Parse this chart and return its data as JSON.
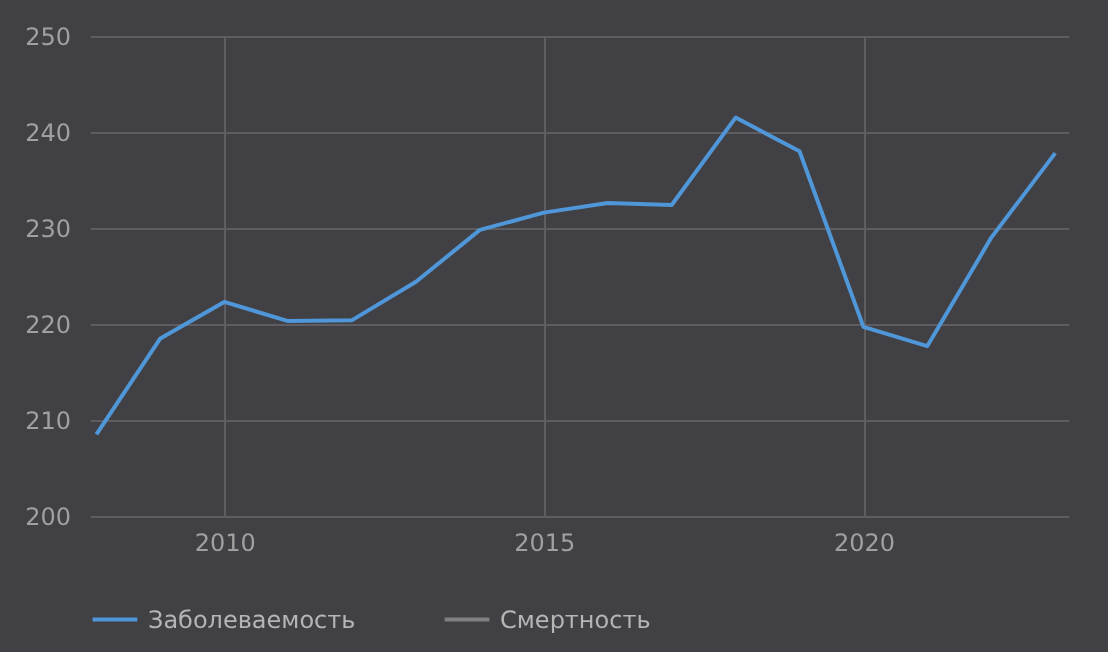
{
  "chart_data": {
    "type": "line",
    "x": [
      2008,
      2009,
      2010,
      2011,
      2012,
      2013,
      2014,
      2015,
      2016,
      2017,
      2018,
      2019,
      2020,
      2021,
      2022,
      2023
    ],
    "series": [
      {
        "name": "Заболеваемость",
        "color": "#4f97d8",
        "values": [
          208.5,
          218.5,
          222.3,
          220.3,
          220.4,
          224.4,
          229.8,
          231.6,
          232.6,
          232.4,
          241.5,
          238.0,
          219.7,
          217.7,
          229.0,
          237.8
        ]
      },
      {
        "name": "Смертность",
        "color": "#808080",
        "values": [
          null,
          null,
          null,
          null,
          null,
          null,
          null,
          null,
          null,
          null,
          null,
          null,
          null,
          null,
          null,
          null
        ]
      }
    ],
    "xlim": [
      2007.9,
      2023.2
    ],
    "xticks": [
      2010,
      2015,
      2020
    ],
    "ylim": [
      200,
      250
    ],
    "yticks": [
      200,
      210,
      220,
      230,
      240,
      250
    ],
    "grid": true,
    "legend": "bottom",
    "marker": "none",
    "line_style": "solid"
  }
}
